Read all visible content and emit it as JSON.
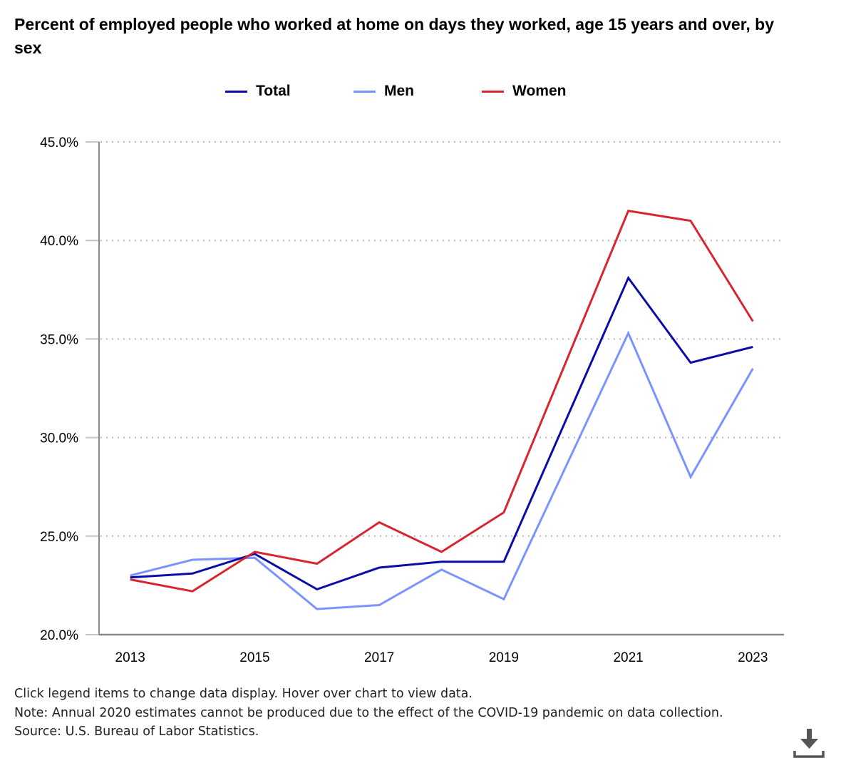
{
  "title": "Percent of employed people who worked at home on days they worked, age 15 years and over, by sex",
  "legend": [
    {
      "label": "Total",
      "color": "#0b0ca8"
    },
    {
      "label": "Men",
      "color": "#7b93ff"
    },
    {
      "label": "Women",
      "color": "#d7262f"
    }
  ],
  "footer": {
    "instructions": "Click legend items to change data display. Hover over chart to view data.",
    "note": "Note: Annual 2020 estimates cannot be produced due to the effect of the COVID-19 pandemic on data collection.",
    "source": "Source: U.S. Bureau of Labor Statistics."
  },
  "download_icon": "download-icon",
  "chart_data": {
    "type": "line",
    "title": "Percent of employed people who worked at home on days they worked, age 15 years and over, by sex",
    "xlabel": "",
    "ylabel": "",
    "x": [
      2013,
      2014,
      2015,
      2016,
      2017,
      2018,
      2019,
      2020,
      2021,
      2022,
      2023
    ],
    "x_tick_labels": [
      "2013",
      "2015",
      "2017",
      "2019",
      "2021",
      "2023"
    ],
    "y_tick_labels": [
      "20.0%",
      "25.0%",
      "30.0%",
      "35.0%",
      "40.0%",
      "45.0%"
    ],
    "ylim": [
      20,
      45
    ],
    "grid": "horizontal dotted",
    "legend_position": "top",
    "series": [
      {
        "name": "Total",
        "color": "#0b0ca8",
        "values": [
          22.9,
          23.1,
          24.1,
          22.3,
          23.4,
          23.7,
          23.7,
          null,
          38.1,
          33.8,
          34.6
        ]
      },
      {
        "name": "Men",
        "color": "#7b93ff",
        "values": [
          23.0,
          23.8,
          23.9,
          21.3,
          21.5,
          23.3,
          21.8,
          null,
          35.3,
          28.0,
          33.5
        ]
      },
      {
        "name": "Women",
        "color": "#d7262f",
        "values": [
          22.8,
          22.2,
          24.2,
          23.6,
          25.7,
          24.2,
          26.2,
          null,
          41.5,
          41.0,
          35.9
        ]
      }
    ],
    "annotations": [
      "Annual 2020 estimates cannot be produced due to the effect of the COVID-19 pandemic on data collection."
    ]
  }
}
